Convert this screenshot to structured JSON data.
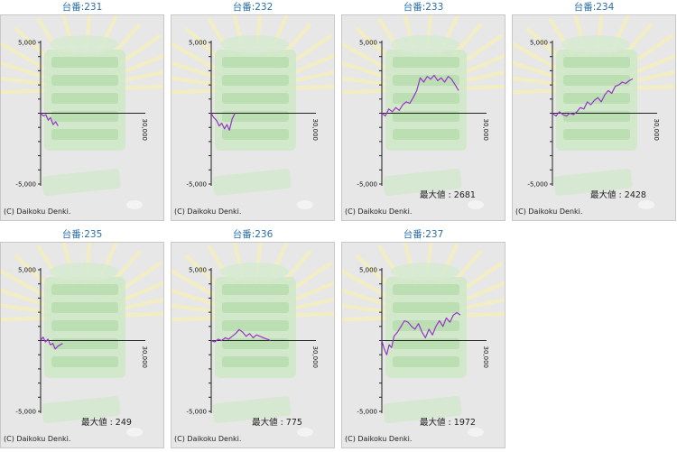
{
  "copyright": "(C) Daikoku Denki.",
  "colors": {
    "title": "#2a6fa8",
    "line": "#9933cc",
    "background": "#e7e7e7"
  },
  "chart_data": [
    {
      "type": "line",
      "title": "台番:231",
      "ylim": [
        -5000,
        5000
      ],
      "xlim": [
        0,
        30000
      ],
      "y_ticks": [
        "5,000",
        "-5,000"
      ],
      "x_tick": "30,000",
      "max_label": "",
      "series": [
        {
          "x": [
            0,
            800,
            1500,
            2200,
            2800,
            3600,
            4300,
            5000
          ],
          "values": [
            0,
            -200,
            -100,
            -500,
            -300,
            -800,
            -600,
            -900
          ]
        }
      ]
    },
    {
      "type": "line",
      "title": "台番:232",
      "ylim": [
        -5000,
        5000
      ],
      "xlim": [
        0,
        30000
      ],
      "y_ticks": [
        "5,000",
        "-5,000"
      ],
      "x_tick": "30,000",
      "max_label": "",
      "series": [
        {
          "x": [
            0,
            700,
            1500,
            2300,
            3000,
            3800,
            4500,
            5200,
            6000,
            6800
          ],
          "values": [
            0,
            -300,
            -500,
            -900,
            -700,
            -1100,
            -800,
            -1200,
            -400,
            0
          ]
        }
      ]
    },
    {
      "type": "line",
      "title": "台番:233",
      "ylim": [
        -5000,
        5000
      ],
      "xlim": [
        0,
        30000
      ],
      "y_ticks": [
        "5,000",
        "-5,000"
      ],
      "x_tick": "30,000",
      "max_label": "最大値 : 2681",
      "series": [
        {
          "x": [
            0,
            1000,
            2000,
            3000,
            4000,
            5000,
            6000,
            7000,
            8000,
            9000,
            10000,
            11000,
            12000,
            13000,
            14000,
            15000,
            16000,
            17000,
            18000,
            19000,
            20000,
            21000,
            22000
          ],
          "values": [
            0,
            -200,
            300,
            100,
            400,
            200,
            600,
            800,
            700,
            1100,
            1600,
            2500,
            2200,
            2600,
            2400,
            2681,
            2300,
            2500,
            2200,
            2600,
            2400,
            2000,
            1600
          ]
        }
      ]
    },
    {
      "type": "line",
      "title": "台番:234",
      "ylim": [
        -5000,
        5000
      ],
      "xlim": [
        0,
        30000
      ],
      "y_ticks": [
        "5,000",
        "-5,000"
      ],
      "x_tick": "30,000",
      "max_label": "最大値 : 2428",
      "series": [
        {
          "x": [
            0,
            1000,
            2000,
            3000,
            4000,
            5000,
            6000,
            7000,
            8000,
            9000,
            10000,
            11000,
            12000,
            13000,
            14000,
            15000,
            16000,
            17000,
            18000,
            19000,
            20000,
            21000,
            22000,
            23000
          ],
          "values": [
            0,
            -200,
            100,
            -100,
            -200,
            0,
            -100,
            100,
            400,
            300,
            800,
            600,
            900,
            1100,
            800,
            1300,
            1600,
            1400,
            1900,
            2000,
            2200,
            2100,
            2300,
            2428
          ]
        }
      ]
    },
    {
      "type": "line",
      "title": "台番:235",
      "ylim": [
        -5000,
        5000
      ],
      "xlim": [
        0,
        30000
      ],
      "y_ticks": [
        "5,000",
        "-5,000"
      ],
      "x_tick": "30,000",
      "max_label": "最大値 : 249",
      "series": [
        {
          "x": [
            0,
            700,
            1400,
            2100,
            2800,
            3500,
            4200,
            4900,
            5600,
            6300
          ],
          "values": [
            0,
            249,
            -100,
            100,
            -300,
            -200,
            -600,
            -400,
            -300,
            -200
          ]
        }
      ]
    },
    {
      "type": "line",
      "title": "台番:236",
      "ylim": [
        -5000,
        5000
      ],
      "xlim": [
        0,
        30000
      ],
      "y_ticks": [
        "5,000",
        "-5,000"
      ],
      "x_tick": "30,000",
      "max_label": "最大値 : 775",
      "series": [
        {
          "x": [
            0,
            1000,
            2000,
            3000,
            4000,
            5000,
            6000,
            7000,
            8000,
            9000,
            10000,
            11000,
            12000,
            13000,
            14000,
            15000,
            16000,
            17000
          ],
          "values": [
            0,
            -100,
            100,
            0,
            200,
            100,
            300,
            500,
            775,
            600,
            300,
            500,
            200,
            400,
            300,
            200,
            100,
            0
          ]
        }
      ]
    },
    {
      "type": "line",
      "title": "台番:237",
      "ylim": [
        -5000,
        5000
      ],
      "xlim": [
        0,
        30000
      ],
      "y_ticks": [
        "5,000",
        "-5,000"
      ],
      "x_tick": "30,000",
      "max_label": "最大値 : 1972",
      "series": [
        {
          "x": [
            0,
            700,
            1400,
            2100,
            2800,
            3500,
            4500,
            5500,
            6500,
            7500,
            8500,
            9500,
            10500,
            11500,
            12500,
            13500,
            14500,
            15500,
            16500,
            17500,
            18500,
            19500,
            20500,
            21500,
            22500
          ],
          "values": [
            0,
            -600,
            -1000,
            -300,
            -500,
            300,
            600,
            1000,
            1400,
            1300,
            1000,
            800,
            1200,
            600,
            200,
            800,
            400,
            1000,
            1400,
            1000,
            1600,
            1300,
            1800,
            1972,
            1800
          ]
        }
      ]
    }
  ]
}
